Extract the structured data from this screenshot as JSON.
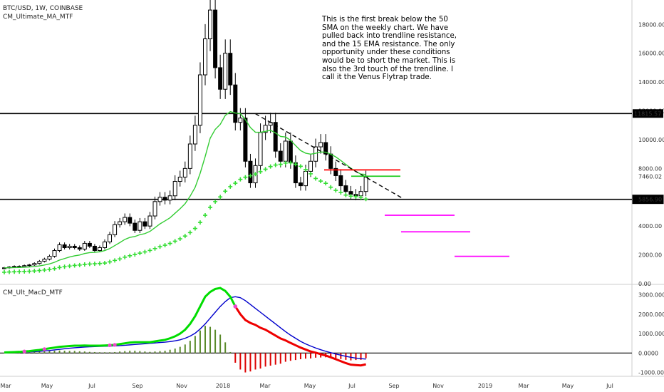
{
  "header": {
    "symbol_line": "BTC/USD, 1W, COINBASE",
    "indicator_top": "CM_Ultimate_MA_MTF",
    "indicator_bottom": "CM_Ult_MacD_MTF"
  },
  "annotation": "This is the first break below the 50 SMA on the weekly chart.  We have pulled back into trendline resistance, and the 15 EMA resistance.  The only opportunity under these conditions would be to short the market. This is also the 3rd touch of the trendline.  I call it the Venus Flytrap trade.",
  "colors": {
    "ema15": "#33cc33",
    "sma50": "#33dd33",
    "hline": "#000000",
    "red_level": "#ff0000",
    "magenta_target": "#ff00ff",
    "macd_line": "#00dd00",
    "signal_line": "#0000cc",
    "macd_down": "#ee0000",
    "hist_pos": "#5a8a2a",
    "hist_neg": "#dd0000"
  },
  "chart_data": [
    {
      "type": "candlestick",
      "title": "BTC/USD, 1W, COINBASE",
      "ylim": [
        0,
        19500
      ],
      "y_ticks": [
        "18000.00",
        "16000.00",
        "14000.00",
        "12000.00",
        "10000.00",
        "8000.00",
        "7460.02",
        "5856.90",
        "4000.00",
        "2000.00",
        "0.00"
      ],
      "x_ticks": [
        "Mar",
        "May",
        "Jul",
        "Sep",
        "Nov",
        "2018",
        "Mar",
        "May",
        "Jul",
        "Sep",
        "Nov",
        "2019",
        "Mar",
        "May",
        "Jul"
      ],
      "price_labels": [
        "11815.57",
        "7460.02",
        "5856.90"
      ],
      "weekly_closes": [
        1100,
        1150,
        1200,
        1180,
        1250,
        1300,
        1400,
        1550,
        1700,
        1900,
        2300,
        2700,
        2500,
        2600,
        2500,
        2400,
        2800,
        2600,
        2300,
        2500,
        2900,
        3400,
        4100,
        4300,
        4600,
        4200,
        3700,
        4300,
        4000,
        4700,
        5700,
        6000,
        5800,
        6100,
        7100,
        7400,
        8000,
        9700,
        11000,
        14500,
        17000,
        19000,
        15000,
        13500,
        16000,
        13800,
        11200,
        11500,
        8500,
        7000,
        8200,
        10500,
        11000,
        11200,
        9200,
        8500,
        9900,
        8400,
        7000,
        6800,
        7800,
        8500,
        9500,
        9800,
        9000,
        8000,
        7500,
        6800,
        6400,
        6200,
        6100,
        6400,
        7400
      ],
      "hlines": [
        11815.57,
        5856.9
      ],
      "red_level": 7900,
      "green_level": 7460,
      "trendline": {
        "start_value": 11800,
        "end_value": 5900
      },
      "magenta_targets": [
        4750,
        3600,
        1900
      ]
    },
    {
      "type": "line",
      "title": "CM_Ult_MacD_MTF",
      "ylim": [
        -1200,
        3500
      ],
      "y_ticks": [
        "3000.0000",
        "2000.0000",
        "1000.0000",
        "0.0000",
        "-1000.0000"
      ],
      "series": [
        {
          "key": "macd",
          "values": [
            30,
            40,
            50,
            60,
            80,
            100,
            130,
            160,
            200,
            240,
            280,
            320,
            340,
            360,
            380,
            380,
            390,
            380,
            380,
            380,
            390,
            400,
            420,
            460,
            500,
            540,
            560,
            560,
            560,
            560,
            600,
            640,
            680,
            760,
            860,
            1000,
            1200,
            1500,
            1900,
            2400,
            2900,
            3150,
            3300,
            3350,
            3200,
            2900,
            2400,
            2000,
            1700,
            1550,
            1450,
            1300,
            1200,
            1050,
            900,
            750,
            650,
            520,
            400,
            280,
            180,
            80,
            20,
            -60,
            -130,
            -220,
            -320,
            -420,
            -520,
            -600,
            -620,
            -640,
            -580
          ]
        },
        {
          "key": "signal",
          "values": [
            20,
            25,
            30,
            40,
            50,
            60,
            70,
            90,
            110,
            130,
            160,
            190,
            220,
            250,
            270,
            290,
            310,
            320,
            330,
            340,
            350,
            360,
            370,
            380,
            400,
            420,
            440,
            460,
            480,
            500,
            520,
            540,
            560,
            590,
            630,
            680,
            760,
            870,
            1020,
            1240,
            1500,
            1800,
            2100,
            2400,
            2650,
            2850,
            2900,
            2850,
            2700,
            2500,
            2300,
            2100,
            1900,
            1700,
            1500,
            1300,
            1100,
            920,
            760,
            600,
            470,
            360,
            260,
            170,
            90,
            20,
            -50,
            -110,
            -170,
            -220,
            -260,
            -290,
            -310
          ]
        },
        {
          "key": "histogram",
          "values": [
            10,
            15,
            20,
            20,
            30,
            40,
            60,
            70,
            90,
            110,
            120,
            130,
            120,
            110,
            110,
            90,
            80,
            60,
            50,
            40,
            40,
            40,
            50,
            80,
            100,
            120,
            120,
            100,
            80,
            60,
            80,
            100,
            120,
            170,
            230,
            320,
            440,
            630,
            880,
            1160,
            1400,
            1350,
            1200,
            950,
            550,
            50,
            -500,
            -850,
            -1000,
            -950,
            -850,
            -800,
            -700,
            -650,
            -600,
            -550,
            -450,
            -400,
            -360,
            -320,
            -290,
            -280,
            -240,
            -230,
            -220,
            -240,
            -270,
            -310,
            -350,
            -380,
            -360,
            -350,
            -270
          ]
        }
      ]
    }
  ]
}
